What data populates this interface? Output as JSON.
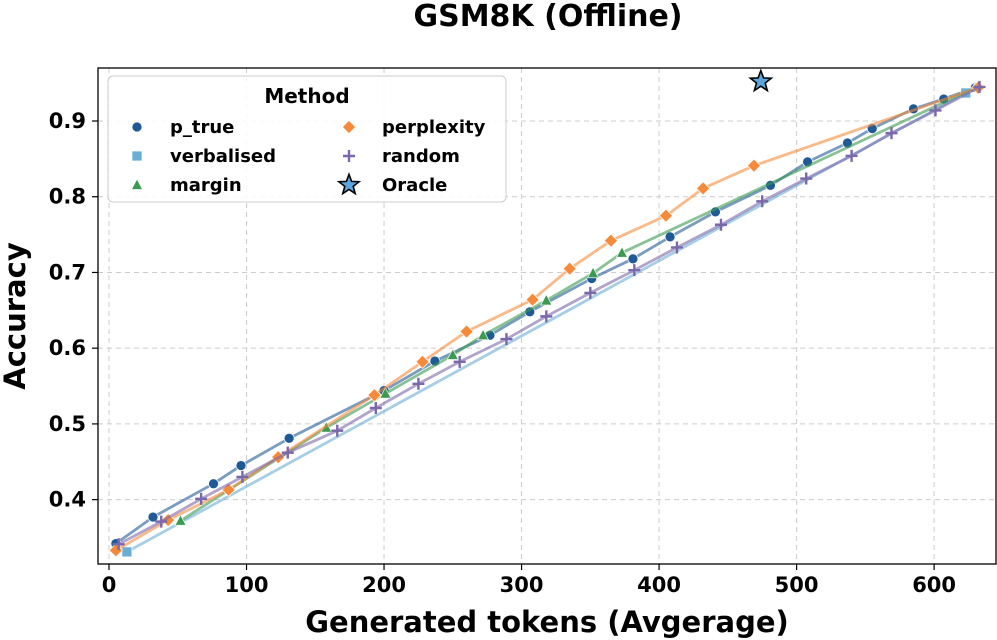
{
  "chart_data": {
    "type": "line",
    "title": "GSM8K (Offline)",
    "xlabel": "Generated tokens (Avgerage)",
    "ylabel": "Accuracy",
    "xlim": [
      -8,
      645
    ],
    "ylim": [
      0.315,
      0.97
    ],
    "xticks": [
      0,
      100,
      200,
      300,
      400,
      500,
      600
    ],
    "yticks": [
      0.4,
      0.5,
      0.6,
      0.7,
      0.8,
      0.9
    ],
    "grid": true,
    "legend": {
      "title": "Method",
      "placement": "top-left",
      "columns": 2
    },
    "series": [
      {
        "name": "p_true",
        "color": "#1f5a96",
        "marker": "circle",
        "x": [
          5,
          32,
          76,
          96,
          131,
          200,
          237,
          277,
          306,
          351,
          381,
          408,
          441,
          481,
          508,
          537,
          555,
          585,
          607,
          630
        ],
        "y": [
          0.342,
          0.377,
          0.421,
          0.445,
          0.481,
          0.544,
          0.583,
          0.617,
          0.648,
          0.692,
          0.718,
          0.747,
          0.78,
          0.815,
          0.846,
          0.871,
          0.89,
          0.916,
          0.929,
          0.944
        ]
      },
      {
        "name": "verbalised",
        "color": "#6aaed6",
        "marker": "square",
        "x": [
          13,
          623
        ],
        "y": [
          0.331,
          0.937
        ]
      },
      {
        "name": "margin",
        "color": "#3a9a50",
        "marker": "triangle",
        "x": [
          52,
          158,
          201,
          250,
          272,
          318,
          352,
          373,
          630
        ],
        "y": [
          0.372,
          0.495,
          0.54,
          0.591,
          0.617,
          0.663,
          0.699,
          0.726,
          0.944
        ]
      },
      {
        "name": "perplexity",
        "color": "#f58b3a",
        "marker": "diamond",
        "x": [
          5,
          43,
          87,
          123,
          193,
          228,
          260,
          308,
          335,
          365,
          405,
          432,
          469,
          632
        ],
        "y": [
          0.333,
          0.373,
          0.413,
          0.456,
          0.538,
          0.582,
          0.622,
          0.664,
          0.705,
          0.742,
          0.775,
          0.811,
          0.841,
          0.944
        ]
      },
      {
        "name": "random",
        "color": "#7b68aa",
        "marker": "plus",
        "x": [
          7,
          38,
          67,
          97,
          130,
          166,
          194,
          225,
          255,
          289,
          318,
          350,
          382,
          413,
          445,
          475,
          507,
          540,
          569,
          601,
          633
        ],
        "y": [
          0.341,
          0.371,
          0.401,
          0.43,
          0.462,
          0.491,
          0.521,
          0.553,
          0.582,
          0.612,
          0.642,
          0.673,
          0.703,
          0.733,
          0.763,
          0.794,
          0.824,
          0.854,
          0.884,
          0.914,
          0.945
        ]
      }
    ],
    "oracle": {
      "name": "Oracle",
      "x": 474,
      "y": 0.952,
      "color": "#5da5dc",
      "marker": "star"
    }
  }
}
